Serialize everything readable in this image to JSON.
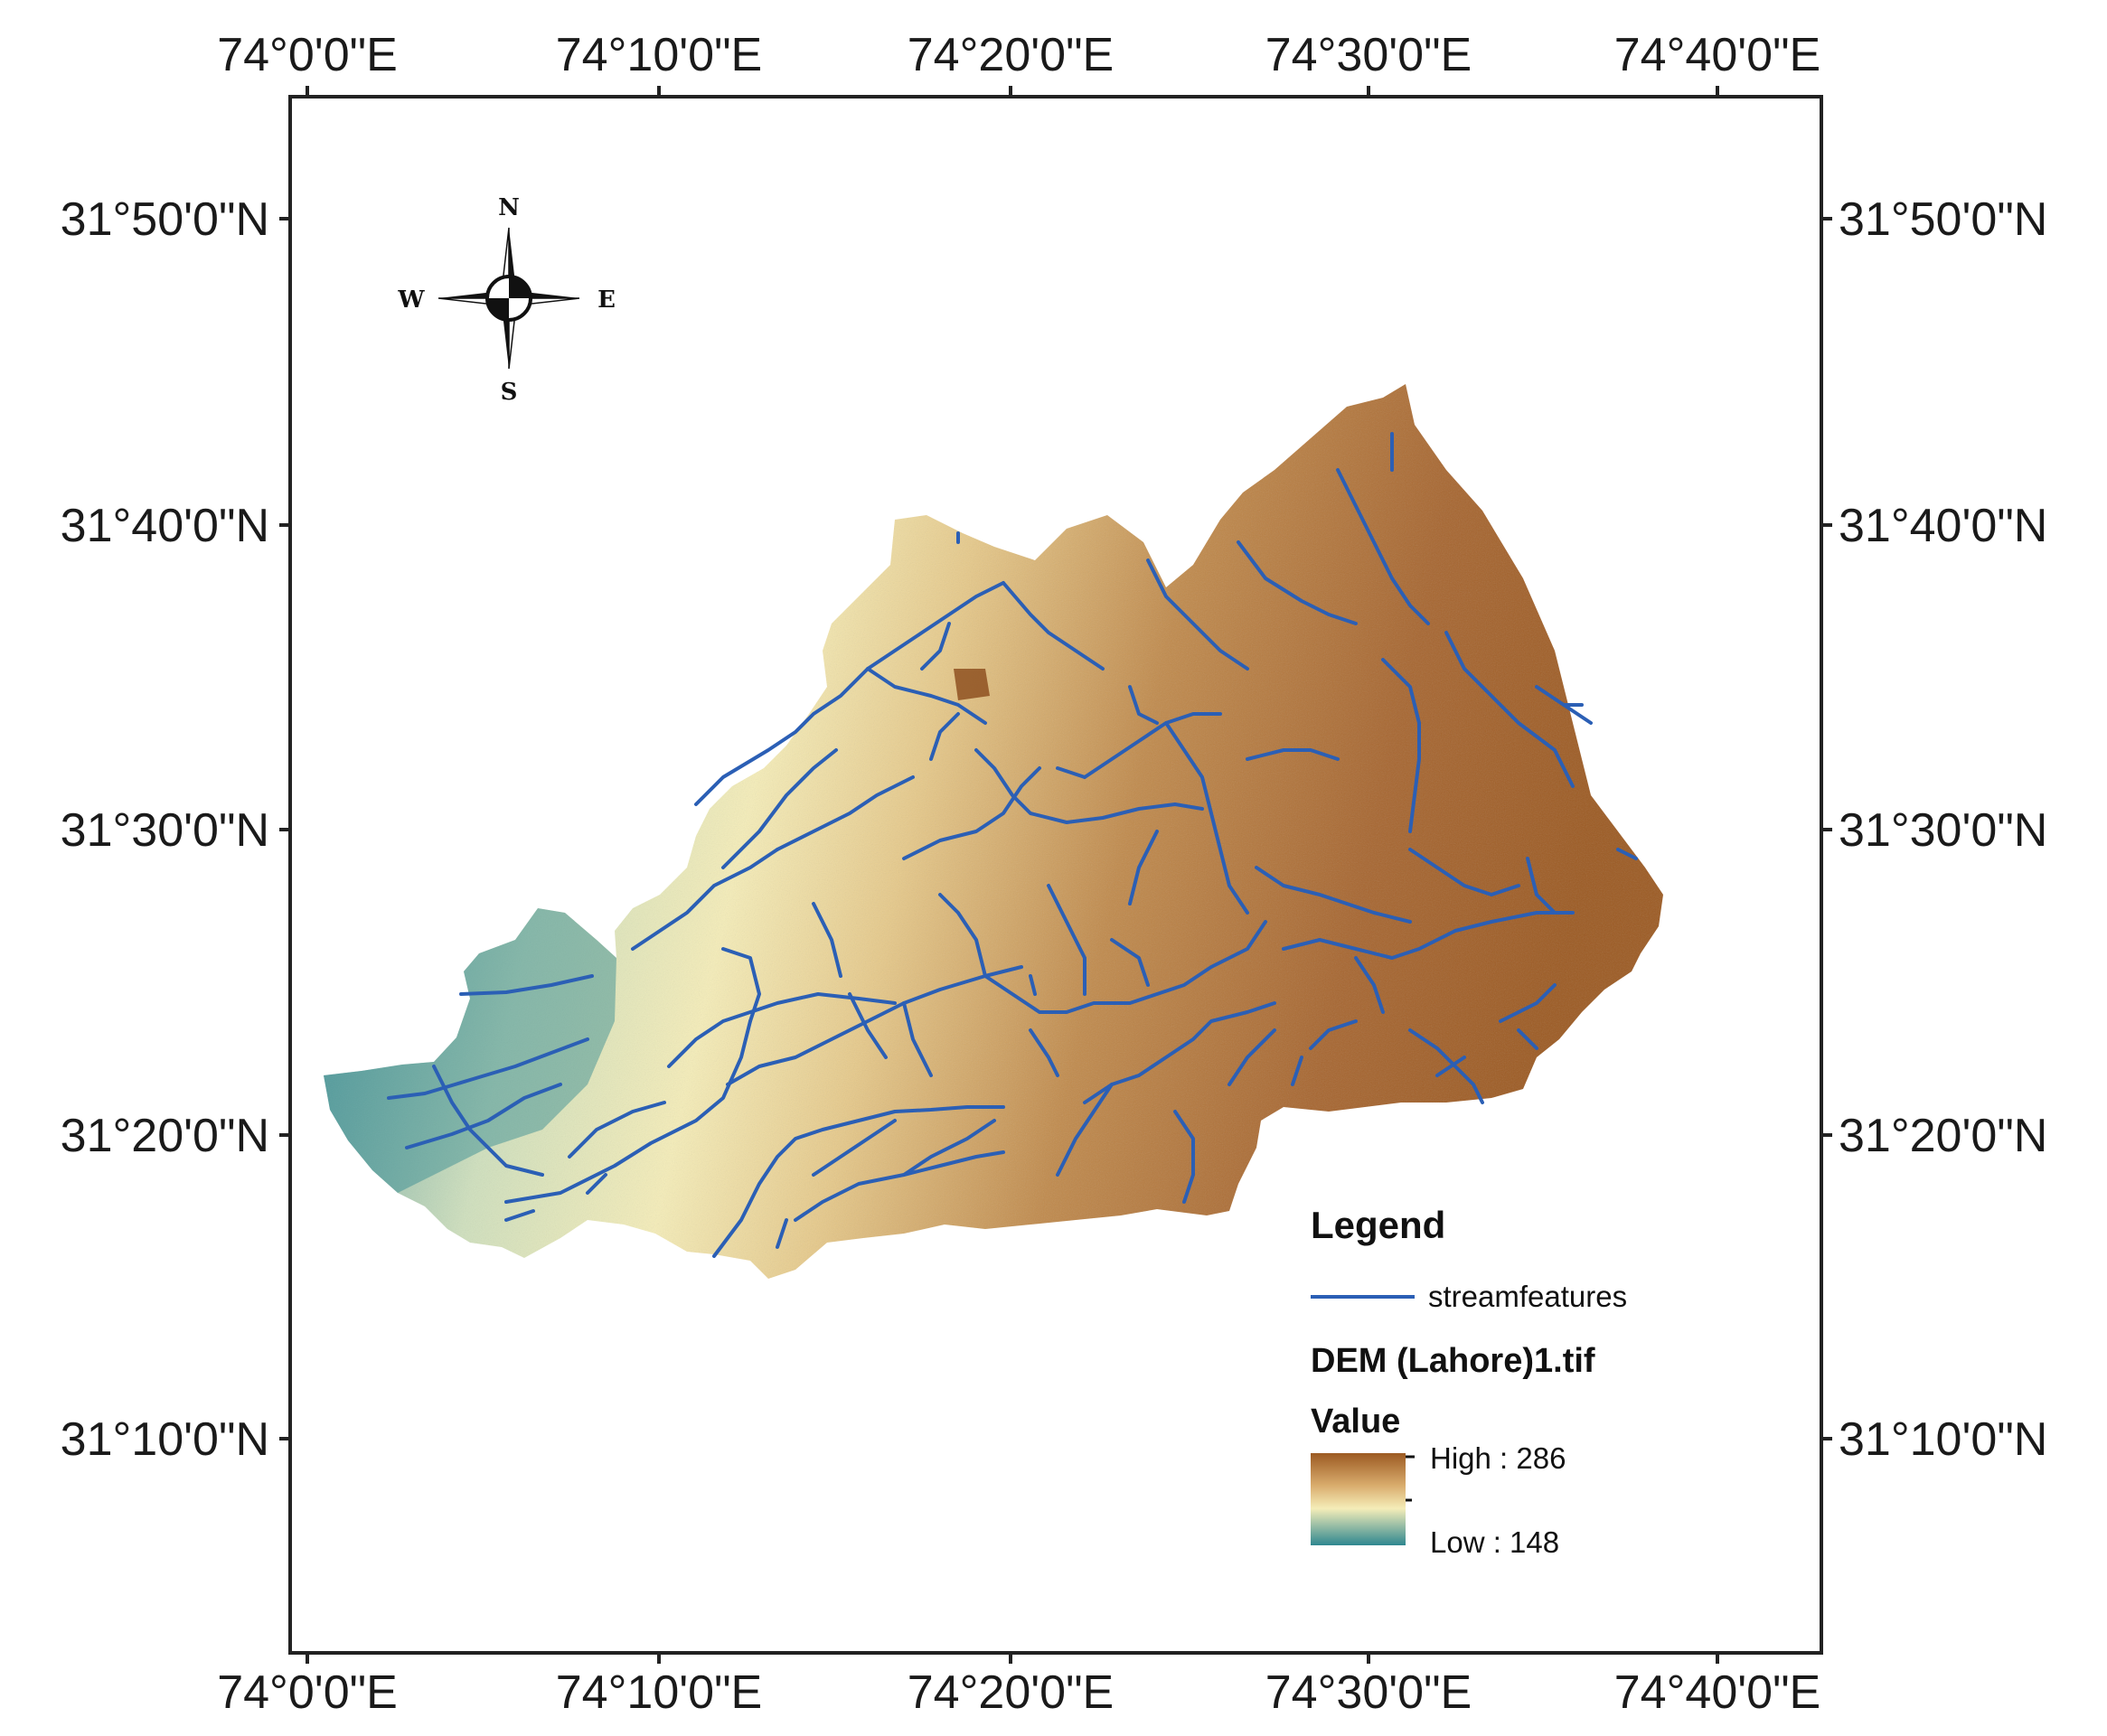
{
  "map": {
    "lon_ticks": [
      "74°0'0\"E",
      "74°10'0\"E",
      "74°20'0\"E",
      "74°30'0\"E",
      "74°40'0\"E"
    ],
    "lat_ticks": [
      "31°50'0\"N",
      "31°40'0\"N",
      "31°30'0\"N",
      "31°20'0\"N",
      "31°10'0\"N"
    ],
    "colors": {
      "stream": "#2b5fb5",
      "elev_high": "#9c5a22",
      "elev_mid": "#f5edb8",
      "elev_low": "#2f8790"
    }
  },
  "compass": {
    "n": "N",
    "s": "S",
    "e": "E",
    "w": "W"
  },
  "legend": {
    "title": "Legend",
    "stream_label": "streamfeatures",
    "raster_name": "DEM (Lahore)1.tif",
    "value_label": "Value",
    "high_label": "High : 286",
    "low_label": "Low : 148"
  }
}
